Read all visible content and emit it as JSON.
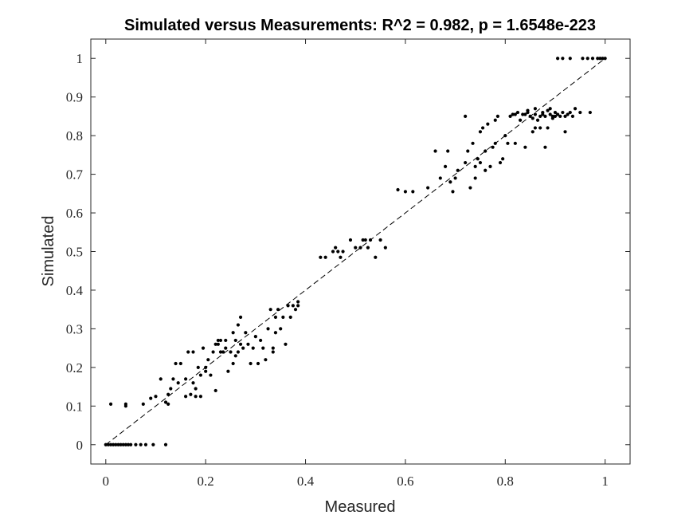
{
  "chart_data": {
    "type": "scatter",
    "title": "Simulated versus Measurements: R^2 = 0.982, p = 1.6548e-223",
    "xlabel": "Measured",
    "ylabel": "Simulated",
    "xlim": [
      -0.03,
      1.05
    ],
    "ylim": [
      -0.05,
      1.05
    ],
    "xticks": [
      0,
      0.2,
      0.4,
      0.6,
      0.8,
      1
    ],
    "xtick_labels": [
      "0",
      "0.2",
      "0.4",
      "0.6",
      "0.8",
      "1"
    ],
    "yticks": [
      0,
      0.1,
      0.2,
      0.3,
      0.4,
      0.5,
      0.6,
      0.7,
      0.8,
      0.9,
      1
    ],
    "ytick_labels": [
      "0",
      "0.1",
      "0.2",
      "0.3",
      "0.4",
      "0.5",
      "0.6",
      "0.7",
      "0.8",
      "0.9",
      "1"
    ],
    "grid": false,
    "reference_line": {
      "style": "dashed",
      "from": [
        0,
        0
      ],
      "to": [
        1,
        1
      ]
    },
    "marker_color": "#000000",
    "points": [
      [
        0.0,
        0.0
      ],
      [
        0.005,
        0.0
      ],
      [
        0.01,
        0.0
      ],
      [
        0.015,
        0.0
      ],
      [
        0.02,
        0.0
      ],
      [
        0.025,
        0.0
      ],
      [
        0.03,
        0.0
      ],
      [
        0.035,
        0.0
      ],
      [
        0.04,
        0.0
      ],
      [
        0.045,
        0.0
      ],
      [
        0.05,
        0.0
      ],
      [
        0.06,
        0.0
      ],
      [
        0.07,
        0.0
      ],
      [
        0.08,
        0.0
      ],
      [
        0.095,
        0.0
      ],
      [
        0.12,
        0.0
      ],
      [
        0.01,
        0.105
      ],
      [
        0.04,
        0.105
      ],
      [
        0.04,
        0.1
      ],
      [
        0.075,
        0.105
      ],
      [
        0.09,
        0.12
      ],
      [
        0.1,
        0.125
      ],
      [
        0.11,
        0.17
      ],
      [
        0.12,
        0.11
      ],
      [
        0.125,
        0.105
      ],
      [
        0.125,
        0.13
      ],
      [
        0.13,
        0.145
      ],
      [
        0.135,
        0.17
      ],
      [
        0.14,
        0.21
      ],
      [
        0.145,
        0.16
      ],
      [
        0.15,
        0.21
      ],
      [
        0.16,
        0.125
      ],
      [
        0.16,
        0.17
      ],
      [
        0.165,
        0.24
      ],
      [
        0.17,
        0.13
      ],
      [
        0.175,
        0.16
      ],
      [
        0.175,
        0.24
      ],
      [
        0.18,
        0.145
      ],
      [
        0.18,
        0.125
      ],
      [
        0.185,
        0.2
      ],
      [
        0.19,
        0.125
      ],
      [
        0.19,
        0.18
      ],
      [
        0.195,
        0.25
      ],
      [
        0.2,
        0.19
      ],
      [
        0.2,
        0.2
      ],
      [
        0.205,
        0.22
      ],
      [
        0.21,
        0.18
      ],
      [
        0.215,
        0.24
      ],
      [
        0.22,
        0.14
      ],
      [
        0.22,
        0.26
      ],
      [
        0.225,
        0.26
      ],
      [
        0.225,
        0.27
      ],
      [
        0.23,
        0.24
      ],
      [
        0.23,
        0.27
      ],
      [
        0.235,
        0.24
      ],
      [
        0.24,
        0.25
      ],
      [
        0.24,
        0.27
      ],
      [
        0.245,
        0.19
      ],
      [
        0.25,
        0.24
      ],
      [
        0.255,
        0.21
      ],
      [
        0.255,
        0.29
      ],
      [
        0.26,
        0.23
      ],
      [
        0.26,
        0.27
      ],
      [
        0.265,
        0.24
      ],
      [
        0.265,
        0.31
      ],
      [
        0.27,
        0.33
      ],
      [
        0.27,
        0.26
      ],
      [
        0.275,
        0.25
      ],
      [
        0.28,
        0.29
      ],
      [
        0.285,
        0.26
      ],
      [
        0.29,
        0.21
      ],
      [
        0.295,
        0.25
      ],
      [
        0.3,
        0.28
      ],
      [
        0.305,
        0.21
      ],
      [
        0.31,
        0.27
      ],
      [
        0.315,
        0.25
      ],
      [
        0.32,
        0.22
      ],
      [
        0.325,
        0.3
      ],
      [
        0.33,
        0.35
      ],
      [
        0.335,
        0.24
      ],
      [
        0.335,
        0.25
      ],
      [
        0.34,
        0.29
      ],
      [
        0.34,
        0.33
      ],
      [
        0.345,
        0.35
      ],
      [
        0.35,
        0.3
      ],
      [
        0.355,
        0.33
      ],
      [
        0.36,
        0.26
      ],
      [
        0.365,
        0.36
      ],
      [
        0.37,
        0.33
      ],
      [
        0.375,
        0.36
      ],
      [
        0.38,
        0.35
      ],
      [
        0.385,
        0.37
      ],
      [
        0.385,
        0.36
      ],
      [
        0.43,
        0.485
      ],
      [
        0.44,
        0.485
      ],
      [
        0.455,
        0.5
      ],
      [
        0.46,
        0.51
      ],
      [
        0.465,
        0.5
      ],
      [
        0.47,
        0.485
      ],
      [
        0.475,
        0.5
      ],
      [
        0.49,
        0.53
      ],
      [
        0.5,
        0.51
      ],
      [
        0.51,
        0.51
      ],
      [
        0.515,
        0.53
      ],
      [
        0.52,
        0.53
      ],
      [
        0.525,
        0.51
      ],
      [
        0.53,
        0.53
      ],
      [
        0.54,
        0.485
      ],
      [
        0.55,
        0.53
      ],
      [
        0.56,
        0.51
      ],
      [
        0.585,
        0.66
      ],
      [
        0.6,
        0.655
      ],
      [
        0.615,
        0.655
      ],
      [
        0.645,
        0.665
      ],
      [
        0.66,
        0.76
      ],
      [
        0.67,
        0.69
      ],
      [
        0.68,
        0.72
      ],
      [
        0.685,
        0.76
      ],
      [
        0.69,
        0.68
      ],
      [
        0.695,
        0.655
      ],
      [
        0.7,
        0.69
      ],
      [
        0.705,
        0.71
      ],
      [
        0.72,
        0.85
      ],
      [
        0.72,
        0.73
      ],
      [
        0.725,
        0.76
      ],
      [
        0.73,
        0.665
      ],
      [
        0.735,
        0.78
      ],
      [
        0.74,
        0.72
      ],
      [
        0.74,
        0.69
      ],
      [
        0.745,
        0.74
      ],
      [
        0.75,
        0.81
      ],
      [
        0.75,
        0.73
      ],
      [
        0.755,
        0.82
      ],
      [
        0.76,
        0.76
      ],
      [
        0.76,
        0.71
      ],
      [
        0.765,
        0.83
      ],
      [
        0.77,
        0.72
      ],
      [
        0.775,
        0.77
      ],
      [
        0.78,
        0.84
      ],
      [
        0.78,
        0.78
      ],
      [
        0.785,
        0.85
      ],
      [
        0.79,
        0.73
      ],
      [
        0.795,
        0.74
      ],
      [
        0.8,
        0.8
      ],
      [
        0.805,
        0.78
      ],
      [
        0.81,
        0.85
      ],
      [
        0.815,
        0.855
      ],
      [
        0.82,
        0.78
      ],
      [
        0.825,
        0.86
      ],
      [
        0.83,
        0.84
      ],
      [
        0.835,
        0.855
      ],
      [
        0.84,
        0.77
      ],
      [
        0.845,
        0.86
      ],
      [
        0.85,
        0.85
      ],
      [
        0.855,
        0.81
      ],
      [
        0.86,
        0.87
      ],
      [
        0.865,
        0.84
      ],
      [
        0.87,
        0.85
      ],
      [
        0.875,
        0.855
      ],
      [
        0.88,
        0.77
      ],
      [
        0.885,
        0.82
      ],
      [
        0.89,
        0.87
      ],
      [
        0.895,
        0.85
      ],
      [
        0.9,
        0.86
      ],
      [
        0.905,
        0.855
      ],
      [
        0.91,
        0.85
      ],
      [
        0.915,
        0.86
      ],
      [
        0.92,
        0.81
      ],
      [
        0.925,
        0.855
      ],
      [
        0.935,
        0.85
      ],
      [
        0.95,
        0.86
      ],
      [
        0.97,
        0.86
      ],
      [
        0.855,
        0.845
      ],
      [
        0.86,
        0.855
      ],
      [
        0.875,
        0.86
      ],
      [
        0.88,
        0.85
      ],
      [
        0.885,
        0.865
      ],
      [
        0.89,
        0.855
      ],
      [
        0.895,
        0.845
      ],
      [
        0.9,
        0.85
      ],
      [
        0.92,
        0.85
      ],
      [
        0.93,
        0.86
      ],
      [
        0.94,
        0.87
      ],
      [
        0.82,
        0.855
      ],
      [
        0.84,
        0.855
      ],
      [
        0.845,
        0.865
      ],
      [
        0.86,
        0.82
      ],
      [
        0.87,
        0.82
      ],
      [
        0.905,
        1.0
      ],
      [
        0.915,
        1.0
      ],
      [
        0.93,
        1.0
      ],
      [
        0.955,
        1.0
      ],
      [
        0.965,
        1.0
      ],
      [
        0.975,
        1.0
      ],
      [
        0.985,
        1.0
      ],
      [
        0.99,
        1.0
      ],
      [
        0.995,
        1.0
      ],
      [
        1.0,
        1.0
      ]
    ]
  }
}
